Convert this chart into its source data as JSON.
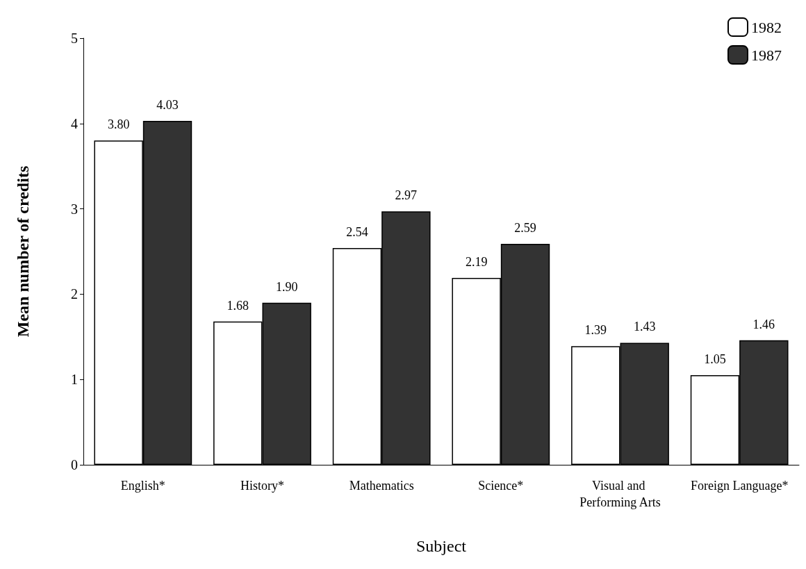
{
  "chart_data": {
    "type": "bar",
    "xlabel": "Subject",
    "ylabel": "Mean number of credits",
    "categories": [
      "English*",
      "History*",
      "Mathematics",
      "Science*",
      "Visual and Performing Arts",
      "Foreign Language*"
    ],
    "series": [
      {
        "name": "1982",
        "color": "#ffffff",
        "values": [
          3.8,
          1.68,
          2.54,
          2.19,
          1.39,
          1.05
        ],
        "value_labels": [
          "3.80",
          "1.68",
          "2.54",
          "2.19",
          "1.39",
          "1.05"
        ]
      },
      {
        "name": "1987",
        "color": "#333333",
        "values": [
          4.03,
          1.9,
          2.97,
          2.59,
          1.43,
          1.46
        ],
        "value_labels": [
          "4.03",
          "1.90",
          "2.97",
          "2.59",
          "1.43",
          "1.46"
        ]
      }
    ],
    "ylim": [
      0,
      5
    ],
    "yticks": [
      0,
      1,
      2,
      3,
      4,
      5
    ],
    "grid": false,
    "legend": "top right"
  }
}
